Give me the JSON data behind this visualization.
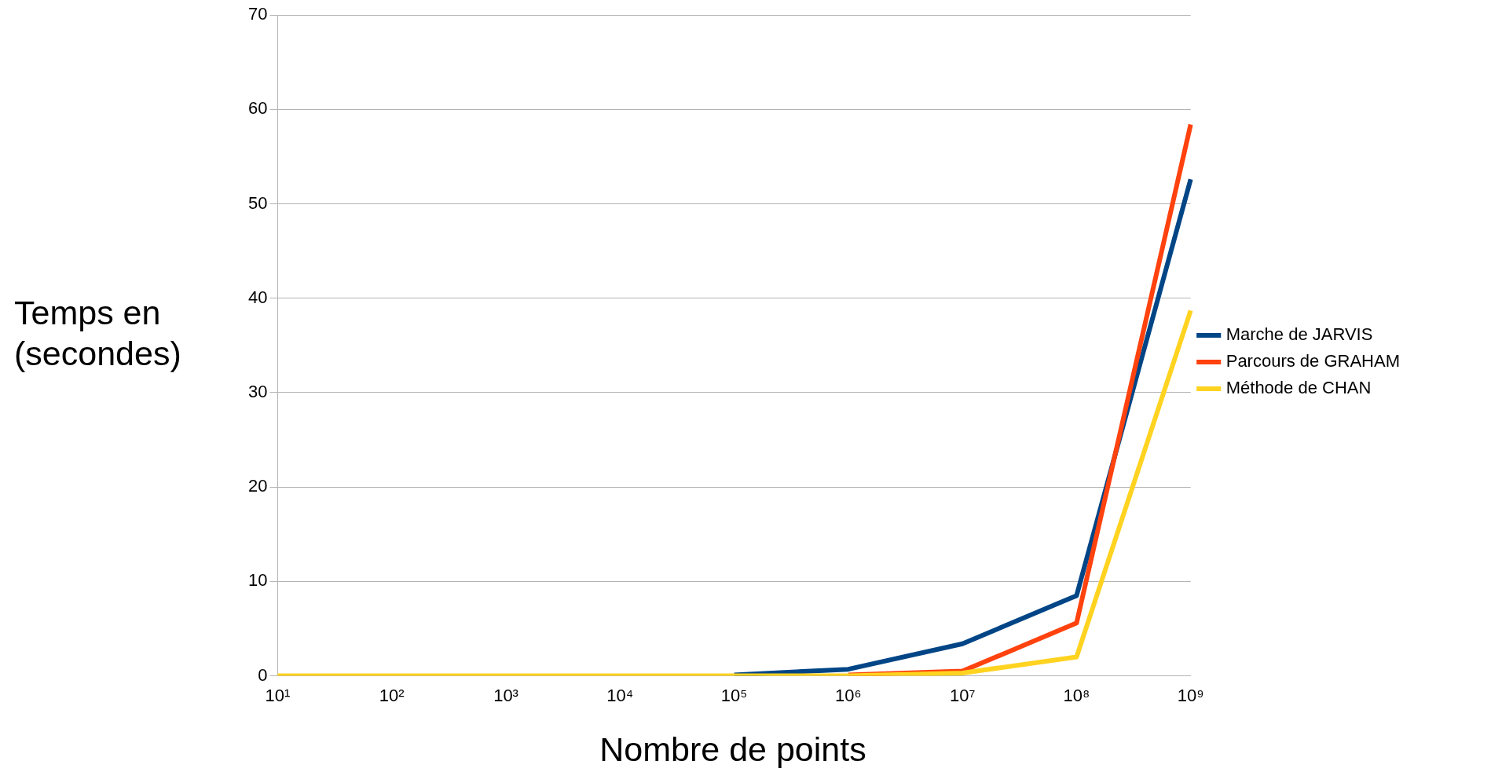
{
  "chart_data": {
    "type": "line",
    "xlabel": "Nombre de points",
    "ylabel": "Temps en (secondes)",
    "categories": [
      "10¹",
      "10²",
      "10³",
      "10⁴",
      "10⁵",
      "10⁶",
      "10⁷",
      "10⁸",
      "10⁹"
    ],
    "series": [
      {
        "name": "Marche de JARVIS",
        "color": "#004586",
        "values": [
          null,
          null,
          null,
          null,
          0.1,
          0.7,
          3.4,
          8.5,
          52.6
        ]
      },
      {
        "name": "Parcours de GRAHAM",
        "color": "#ff420e",
        "values": [
          null,
          null,
          null,
          null,
          null,
          0.1,
          0.5,
          5.6,
          58.4
        ]
      },
      {
        "name": "Méthode de CHAN",
        "color": "#ffd320",
        "values": [
          0,
          0,
          0,
          0,
          0,
          0,
          0.3,
          2.0,
          38.7
        ]
      }
    ],
    "ylim": [
      0,
      70
    ],
    "yticks": [
      0,
      10,
      20,
      30,
      40,
      50,
      60,
      70
    ],
    "grid": "y",
    "legend": "right",
    "marker": "none",
    "line_style": "solid"
  }
}
